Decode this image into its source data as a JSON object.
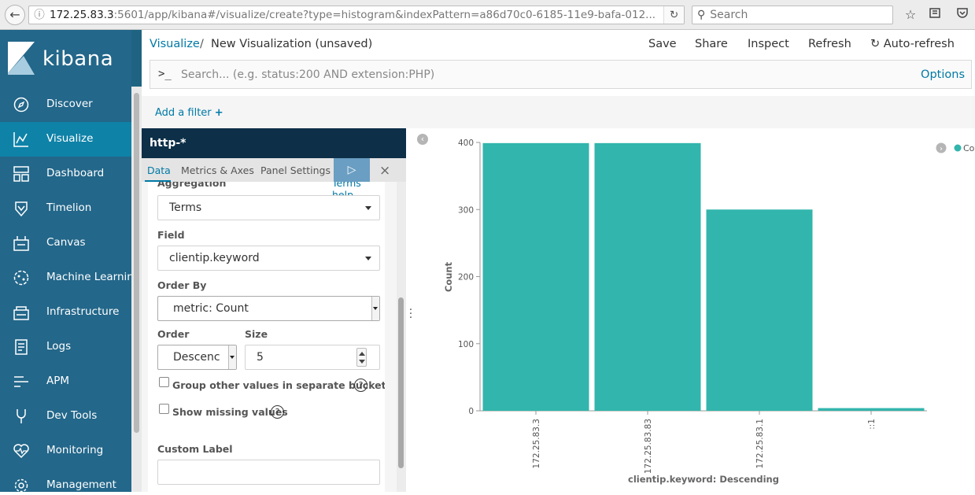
{
  "browser": {
    "url_host": "172.25.83.3",
    "url_rest": ":5601/app/kibana#/visualize/create?type=histogram&indexPattern=a86d70c0-6185-11e9-bafa-012...",
    "search_placeholder": "Search"
  },
  "sidebar": {
    "logo_text": "kibana",
    "items": [
      {
        "label": "Discover",
        "icon": "compass-icon"
      },
      {
        "label": "Visualize",
        "icon": "visualize-icon",
        "active": true
      },
      {
        "label": "Dashboard",
        "icon": "dashboard-icon"
      },
      {
        "label": "Timelion",
        "icon": "timelion-icon"
      },
      {
        "label": "Canvas",
        "icon": "canvas-icon"
      },
      {
        "label": "Machine Learning",
        "icon": "machine-learning-icon"
      },
      {
        "label": "Infrastructure",
        "icon": "infrastructure-icon"
      },
      {
        "label": "Logs",
        "icon": "logs-icon"
      },
      {
        "label": "APM",
        "icon": "apm-icon"
      },
      {
        "label": "Dev Tools",
        "icon": "dev-tools-icon"
      },
      {
        "label": "Monitoring",
        "icon": "monitoring-icon"
      },
      {
        "label": "Management",
        "icon": "gear-icon"
      }
    ]
  },
  "header": {
    "breadcrumb_link": "Visualize",
    "breadcrumb_sep": "/",
    "title": "New Visualization (unsaved)",
    "actions": {
      "save": "Save",
      "share": "Share",
      "inspect": "Inspect",
      "refresh": "Refresh",
      "auto_refresh": "Auto-refresh"
    }
  },
  "query": {
    "prompt": ">_",
    "placeholder": "Search... (e.g. status:200 AND extension:PHP)",
    "options": "Options"
  },
  "filters": {
    "add_label": "Add a filter",
    "add_symbol": "+"
  },
  "editor": {
    "index_pattern": "http-*",
    "tabs": {
      "data": "Data",
      "metrics": "Metrics & Axes",
      "panel": "Panel Settings"
    },
    "apply_symbol": "▷",
    "discard_symbol": "×",
    "aggregation_label": "Aggregation",
    "aggregation_help": "Terms help",
    "aggregation_value": "Terms",
    "field_label": "Field",
    "field_value": "clientip.keyword",
    "order_by_label": "Order By",
    "order_by_value": "metric: Count",
    "order_label": "Order",
    "order_value": "Descenc",
    "size_label": "Size",
    "size_value": "5",
    "group_other_label": "Group other values in separate bucket",
    "show_missing_label": "Show missing values",
    "help_symbol": "?",
    "custom_label_label": "Custom Label",
    "custom_label_value": ""
  },
  "chart_data": {
    "type": "bar",
    "categories": [
      "172.25.83.3",
      "172.25.83.83",
      "172.25.83.1",
      "::1"
    ],
    "values": [
      399,
      399,
      300,
      4
    ],
    "ylabel": "Count",
    "xlabel": "clientip.keyword: Descending",
    "ylim": [
      0,
      400
    ],
    "yticks": [
      0,
      100,
      200,
      300,
      400
    ],
    "legend": {
      "label": "Co",
      "position": "top-right"
    },
    "colors": {
      "bar": "#32b5ac"
    }
  }
}
